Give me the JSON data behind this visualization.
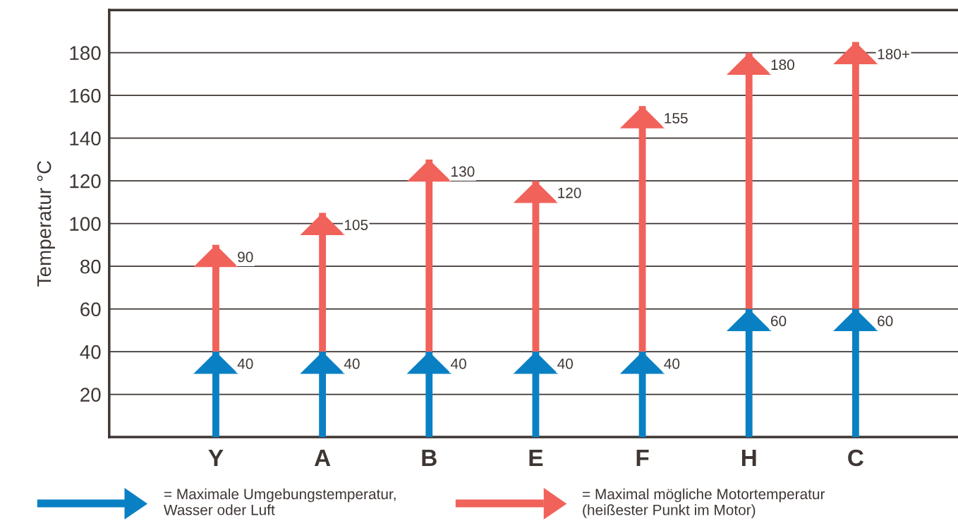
{
  "chart_data": {
    "type": "bar",
    "stacked": true,
    "ylabel": "Temperatur °C",
    "categories": [
      "Y",
      "A",
      "B",
      "E",
      "F",
      "H",
      "C"
    ],
    "series": [
      {
        "name": "= Maximale Umgebungstemperatur,\nWasser oder Luft",
        "color": "#0a80c4",
        "values": [
          40,
          40,
          40,
          40,
          40,
          60,
          60
        ],
        "value_labels": [
          "40",
          "40",
          "40",
          "40",
          "40",
          "60",
          "60"
        ]
      },
      {
        "name": "= Maximal mögliche Motortemperatur\n(heißester Punkt im Motor)",
        "color": "#f0625a",
        "values": [
          50,
          65,
          90,
          80,
          115,
          120,
          125
        ]
      }
    ],
    "totals": [
      "90",
      "105",
      "130",
      "120",
      "155",
      "180",
      "180+"
    ],
    "ylim": [
      0,
      200
    ],
    "yticks": [
      20,
      40,
      60,
      80,
      100,
      120,
      140,
      160,
      180
    ],
    "grid": "y",
    "legend": "bottom"
  }
}
